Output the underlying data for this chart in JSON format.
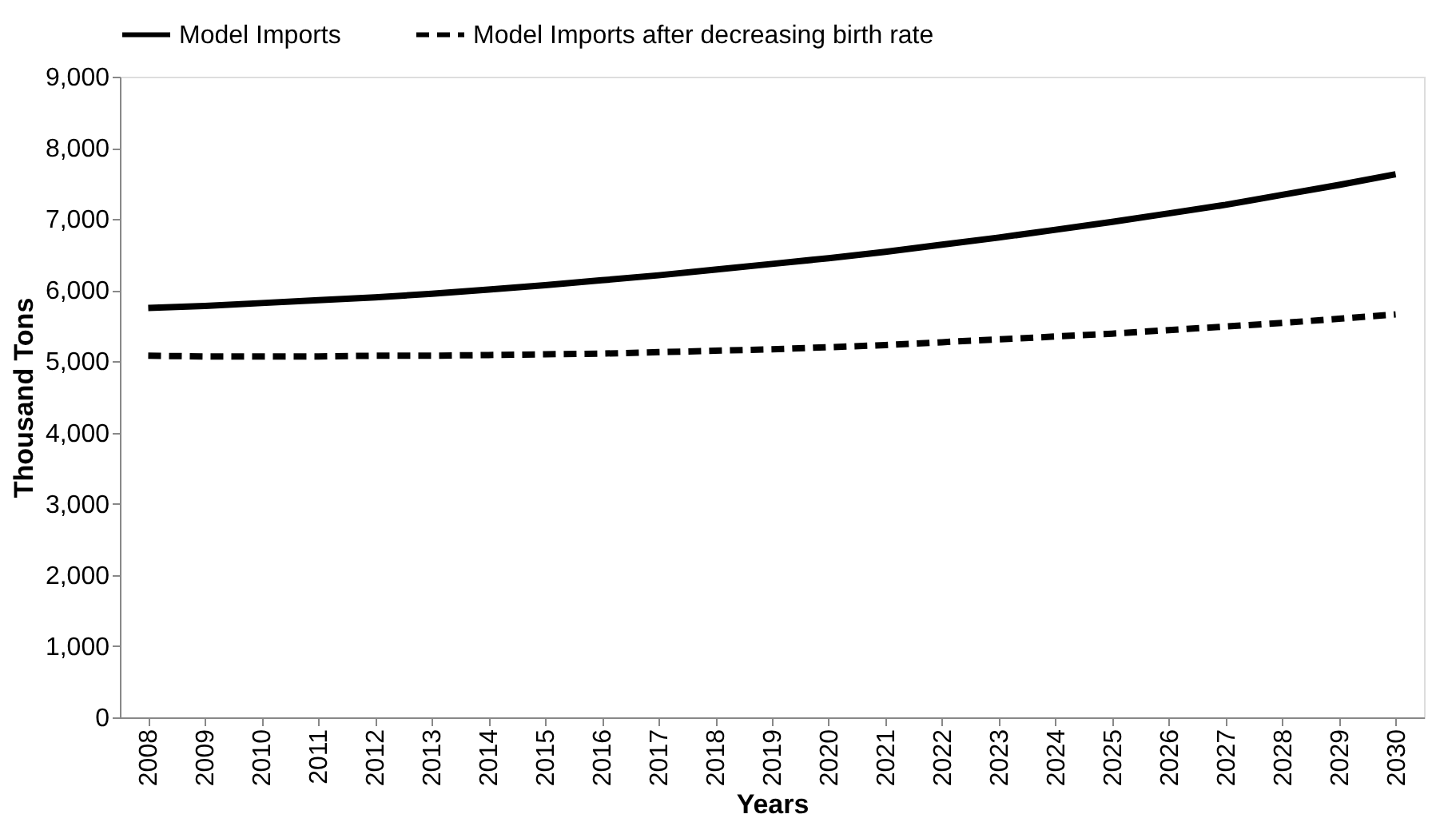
{
  "chart_data": {
    "type": "line",
    "xlabel": "Years",
    "ylabel": "Thousand Tons",
    "categories": [
      "2008",
      "2009",
      "2010",
      "2011",
      "2012",
      "2013",
      "2014",
      "2015",
      "2016",
      "2017",
      "2018",
      "2019",
      "2020",
      "2021",
      "2022",
      "2023",
      "2024",
      "2025",
      "2026",
      "2027",
      "2028",
      "2029",
      "2030"
    ],
    "series": [
      {
        "name": "Model Imports",
        "color": "#000000",
        "line_style": "solid",
        "values": [
          5750,
          5780,
          5820,
          5860,
          5900,
          5950,
          6010,
          6070,
          6140,
          6210,
          6290,
          6370,
          6450,
          6540,
          6640,
          6740,
          6850,
          6960,
          7080,
          7200,
          7340,
          7480,
          7630
        ]
      },
      {
        "name": "Model Imports after decreasing birth rate",
        "color": "#000000",
        "line_style": "dashed",
        "values": [
          5080,
          5070,
          5070,
          5070,
          5080,
          5080,
          5090,
          5100,
          5110,
          5130,
          5150,
          5170,
          5200,
          5230,
          5270,
          5310,
          5350,
          5390,
          5440,
          5490,
          5540,
          5600,
          5660
        ]
      }
    ],
    "ylim": [
      0,
      9000
    ],
    "yticks": [
      0,
      {
        "value": 1000,
        "label": "1,000"
      },
      {
        "value": 2000,
        "label": "2,000"
      },
      {
        "value": 3000,
        "label": "3,000"
      },
      {
        "value": 4000,
        "label": "4,000"
      },
      {
        "value": 5000,
        "label": "5,000"
      },
      {
        "value": 6000,
        "label": "6,000"
      },
      {
        "value": 7000,
        "label": "7,000"
      },
      {
        "value": 8000,
        "label": "8,000"
      },
      {
        "value": 9000,
        "label": "9,000"
      }
    ],
    "grid": false,
    "legend": "top",
    "marker": "none"
  }
}
